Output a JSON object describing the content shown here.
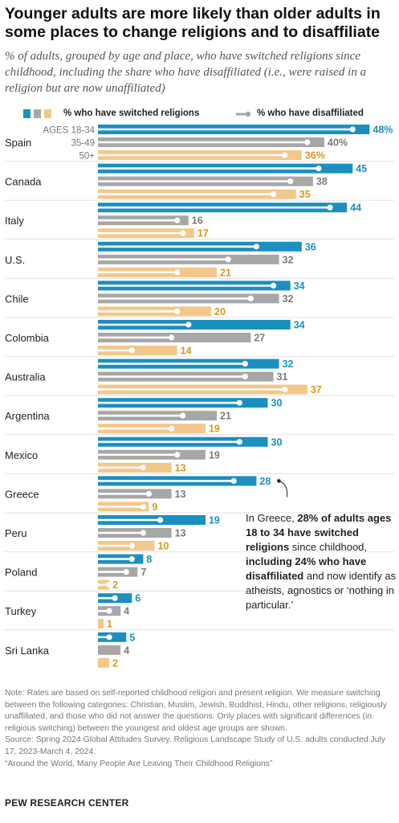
{
  "title": "Younger adults are more likely than older adults in some places to change religions and to disaffiliate",
  "subtitle": "% of adults, grouped by age and place, who have switched religions since childhood, including the share who have disaffiliated (i.e., were raised in a religion but are now unaffiliated)",
  "legend": {
    "switched": "% who have switched religions",
    "disaffiliated": "% who have disaffiliated"
  },
  "colors": {
    "age_18_34": "#1b8fc0",
    "age_35_49": "#a7a7a7",
    "age_50_plus": "#f3c78a",
    "label_18_34": "#1b8fc0",
    "label_35_49": "#7a7a7a",
    "label_50_plus": "#d9961f"
  },
  "chart_data": {
    "type": "bar",
    "orientation": "horizontal",
    "age_groups": [
      "AGES 18-34",
      "35-49",
      "50+"
    ],
    "series": [
      {
        "name": "% who have switched religions"
      },
      {
        "name": "% who have disaffiliated"
      }
    ],
    "categories": [
      "Spain",
      "Canada",
      "Italy",
      "U.S.",
      "Chile",
      "Colombia",
      "Australia",
      "Argentina",
      "Mexico",
      "Greece",
      "Peru",
      "Poland",
      "Turkey",
      "Sri Lanka"
    ],
    "rows": [
      {
        "place": "Spain",
        "groups": [
          {
            "switched": 48,
            "disaffiliated": 45,
            "label": "48%"
          },
          {
            "switched": 40,
            "disaffiliated": 37,
            "label": "40%"
          },
          {
            "switched": 36,
            "disaffiliated": 33,
            "label": "36%"
          }
        ]
      },
      {
        "place": "Canada",
        "groups": [
          {
            "switched": 45,
            "disaffiliated": 39,
            "label": "45"
          },
          {
            "switched": 38,
            "disaffiliated": 34,
            "label": "38"
          },
          {
            "switched": 35,
            "disaffiliated": 31,
            "label": "35"
          }
        ]
      },
      {
        "place": "Italy",
        "groups": [
          {
            "switched": 44,
            "disaffiliated": 41,
            "label": "44"
          },
          {
            "switched": 16,
            "disaffiliated": 14,
            "label": "16"
          },
          {
            "switched": 17,
            "disaffiliated": 15,
            "label": "17"
          }
        ]
      },
      {
        "place": "U.S.",
        "groups": [
          {
            "switched": 36,
            "disaffiliated": 28,
            "label": "36"
          },
          {
            "switched": 32,
            "disaffiliated": 23,
            "label": "32"
          },
          {
            "switched": 21,
            "disaffiliated": 14,
            "label": "21"
          }
        ]
      },
      {
        "place": "Chile",
        "groups": [
          {
            "switched": 34,
            "disaffiliated": 31,
            "label": "34"
          },
          {
            "switched": 32,
            "disaffiliated": 27,
            "label": "32"
          },
          {
            "switched": 20,
            "disaffiliated": 14,
            "label": "20"
          }
        ]
      },
      {
        "place": "Colombia",
        "groups": [
          {
            "switched": 34,
            "disaffiliated": 16,
            "label": "34"
          },
          {
            "switched": 27,
            "disaffiliated": 13,
            "label": "27"
          },
          {
            "switched": 14,
            "disaffiliated": 6,
            "label": "14"
          }
        ]
      },
      {
        "place": "Australia",
        "groups": [
          {
            "switched": 32,
            "disaffiliated": 26,
            "label": "32"
          },
          {
            "switched": 31,
            "disaffiliated": 26,
            "label": "31"
          },
          {
            "switched": 37,
            "disaffiliated": 33,
            "label": "37"
          }
        ]
      },
      {
        "place": "Argentina",
        "groups": [
          {
            "switched": 30,
            "disaffiliated": 25,
            "label": "30"
          },
          {
            "switched": 21,
            "disaffiliated": 15,
            "label": "21"
          },
          {
            "switched": 19,
            "disaffiliated": 13,
            "label": "19"
          }
        ]
      },
      {
        "place": "Mexico",
        "groups": [
          {
            "switched": 30,
            "disaffiliated": 25,
            "label": "30"
          },
          {
            "switched": 19,
            "disaffiliated": 14,
            "label": "19"
          },
          {
            "switched": 13,
            "disaffiliated": 8,
            "label": "13"
          }
        ]
      },
      {
        "place": "Greece",
        "groups": [
          {
            "switched": 28,
            "disaffiliated": 24,
            "label": "28"
          },
          {
            "switched": 13,
            "disaffiliated": 9,
            "label": "13"
          },
          {
            "switched": 9,
            "disaffiliated": 8,
            "label": "9"
          }
        ]
      },
      {
        "place": "Peru",
        "groups": [
          {
            "switched": 19,
            "disaffiliated": 11,
            "label": "19"
          },
          {
            "switched": 13,
            "disaffiliated": 8,
            "label": "13"
          },
          {
            "switched": 10,
            "disaffiliated": 6,
            "label": "10"
          }
        ]
      },
      {
        "place": "Poland",
        "groups": [
          {
            "switched": 8,
            "disaffiliated": 6,
            "label": "8"
          },
          {
            "switched": 7,
            "disaffiliated": 5,
            "label": "7"
          },
          {
            "switched": 2,
            "disaffiliated": 2,
            "label": "2"
          }
        ]
      },
      {
        "place": "Turkey",
        "groups": [
          {
            "switched": 6,
            "disaffiliated": 3,
            "label": "6"
          },
          {
            "switched": 4,
            "disaffiliated": 2,
            "label": "4"
          },
          {
            "switched": 1,
            "disaffiliated": 0,
            "label": "1"
          }
        ]
      },
      {
        "place": "Sri Lanka",
        "groups": [
          {
            "switched": 5,
            "disaffiliated": 2,
            "label": "5"
          },
          {
            "switched": 4,
            "disaffiliated": 0,
            "label": "4"
          },
          {
            "switched": 2,
            "disaffiliated": 0,
            "label": "2"
          }
        ]
      }
    ]
  },
  "annotation": {
    "t1": "In Greece, ",
    "b1": "28% of adults ages 18 to 34 have switched religions",
    "t2": " since childhood, ",
    "b2": "including 24% who have disaffiliated",
    "t3": " and now identify as atheists, agnostics or ‘nothing in particular.’"
  },
  "notes": {
    "note": "Note: Rates are based on self-reported childhood religion and present religion. We measure switching between the following categories: Christian, Muslim, Jewish, Buddhist, Hindu, other religions, religiously unaffiliated, and those who did not answer the questions. Only places with significant differences (in religious switching) between the youngest and oldest age groups are shown.",
    "source": "Source: Spring 2024 Global Attitudes Survey. Religious Landscape Study of U.S. adults conducted July 17, 2023-March 4, 2024.",
    "report": "“Around the World, Many People Are Leaving Their Childhood Religions”"
  },
  "brand": "PEW RESEARCH CENTER"
}
